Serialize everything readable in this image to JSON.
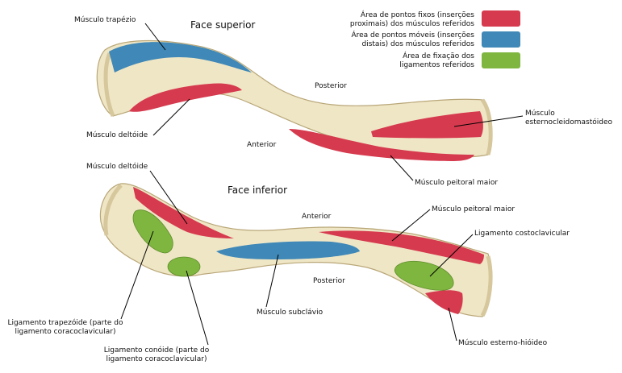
{
  "views": {
    "superior": "Face superior",
    "inferior": "Face inferior"
  },
  "legend": [
    {
      "line1": "Área de pontos fixos (inserções",
      "line2": "proximais) dos músculos referidos",
      "color": "#d63a4e"
    },
    {
      "line1": "Área de pontos móveis (inserções",
      "line2": "distais) dos músculos referidos",
      "color": "#3f88b7"
    },
    {
      "line1": "Área de fixação dos",
      "line2": "ligamentos referidos",
      "color": "#7fb63f"
    }
  ],
  "superior_labels": {
    "trapezio": "Músculo trapézio",
    "deltoide": "Músculo deltóide",
    "posterior": "Posterior",
    "anterior": "Anterior",
    "ecm_line1": "Músculo",
    "ecm_line2": "esternocleidomastóideo",
    "peitoral": "Músculo peitoral maior"
  },
  "inferior_labels": {
    "deltoide": "Músculo deltóide",
    "anterior": "Anterior",
    "peitoral": "Músculo peitoral maior",
    "costoclavicular": "Ligamento costoclavicular",
    "posterior": "Posterior",
    "trapezoide_line1": "Ligamento trapezóide (parte do",
    "trapezoide_line2": "ligamento coracoclavicular)",
    "subclavio": "Músculo subclávio",
    "conoide_line1": "Ligamento conóide (parte do",
    "conoide_line2": "ligamento coracoclavicular)",
    "esterno_hioideo": "Músculo esterno-hióideo"
  },
  "colors": {
    "bone": "#efe6c6",
    "bone_shade": "#d6c79c",
    "bone_outline": "#b9a778",
    "red": "#d63a4e",
    "blue": "#3f88b7",
    "green": "#7fb63f"
  }
}
